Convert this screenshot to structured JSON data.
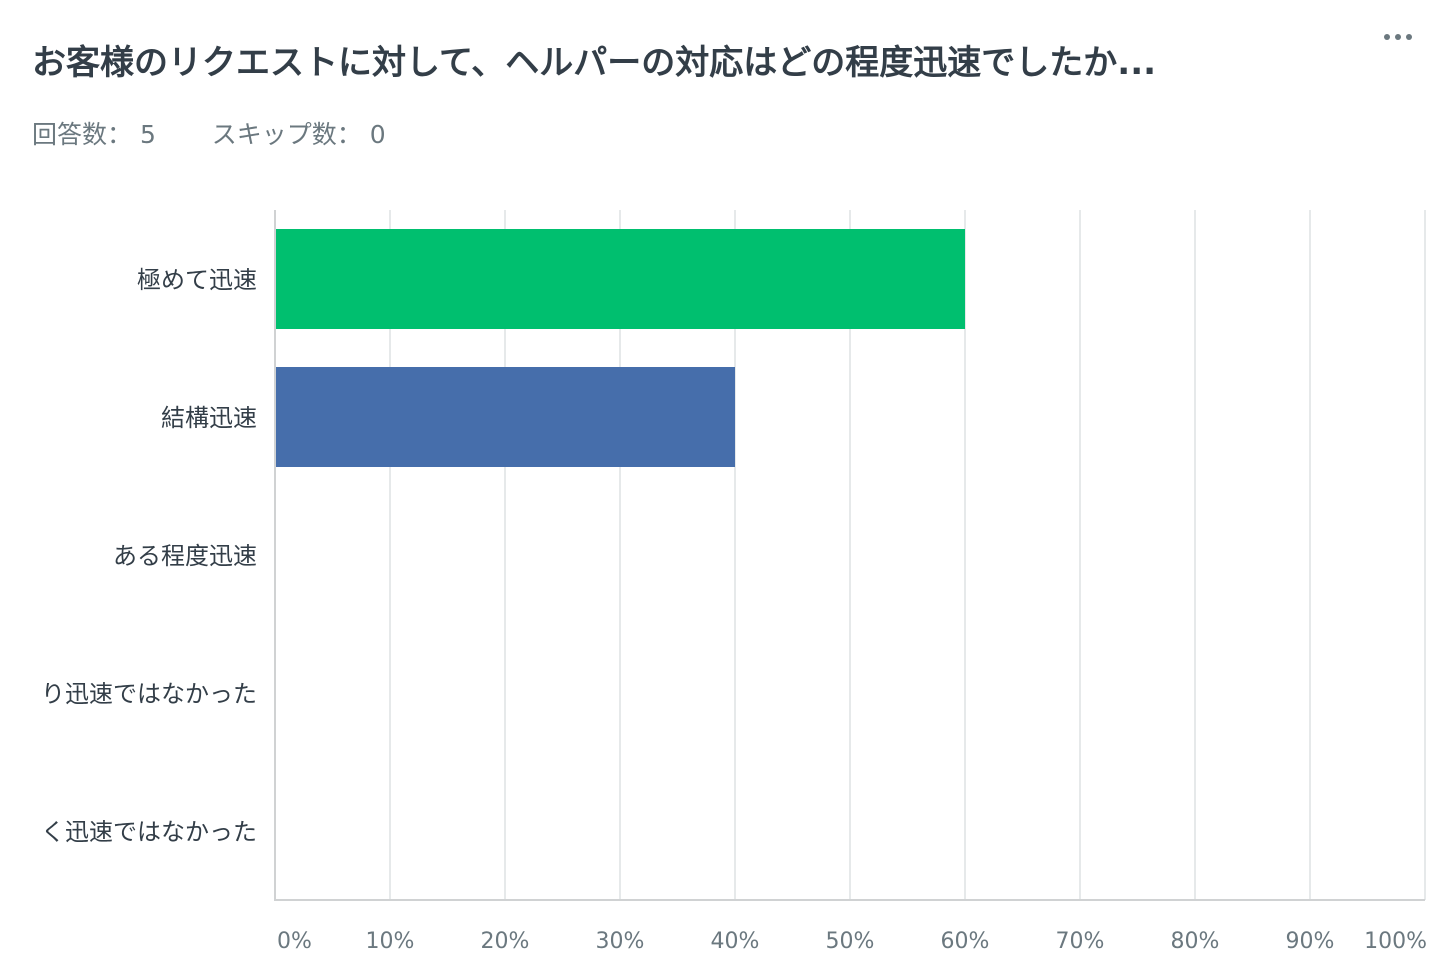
{
  "question": {
    "title": "お客様のリクエストに対して、ヘルパーの対応はどの程度迅速でしたか...",
    "responses_label": "回答数：",
    "responses_value": "5",
    "skipped_label": "スキップ数：",
    "skipped_value": "0",
    "menu_icon": "more-horizontal-icon"
  },
  "chart_data": {
    "type": "bar",
    "orientation": "horizontal",
    "categories": [
      "極めて迅速",
      "結構迅速",
      "ある程度迅速",
      "り迅速ではなかった",
      "く迅速ではなかった"
    ],
    "values": [
      60,
      40,
      0,
      0,
      0
    ],
    "colors": [
      "#00bf6f",
      "#466eab",
      "#f9be00",
      "#7f5fa8",
      "#e86e8a"
    ],
    "xlim": [
      0,
      100
    ],
    "xticks": [
      0,
      10,
      20,
      30,
      40,
      50,
      60,
      70,
      80,
      90,
      100
    ],
    "xtick_labels": [
      "0%",
      "10%",
      "20%",
      "30%",
      "40%",
      "50%",
      "60%",
      "70%",
      "80%",
      "90%",
      "100%"
    ],
    "grid": true,
    "legend": "none"
  }
}
